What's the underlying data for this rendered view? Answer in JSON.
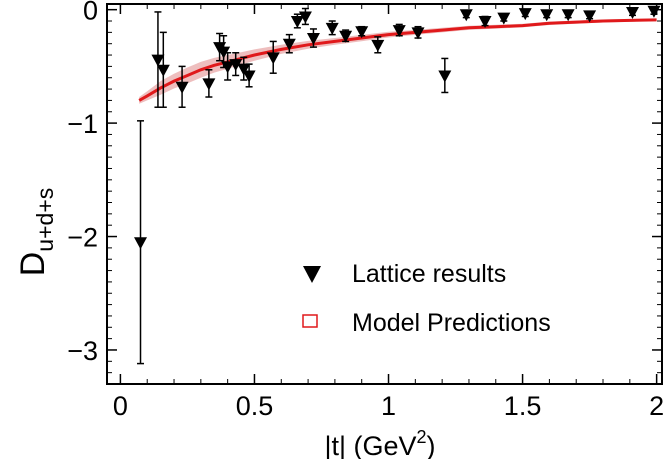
{
  "chart_data": {
    "type": "scatter",
    "title": "",
    "xlabel_main": "|t| (GeV",
    "xlabel_sup": "2",
    "xlabel_tail": ")",
    "ylabel_main": "D",
    "ylabel_sub": "u+d+s",
    "xlim": [
      -0.05,
      2.02
    ],
    "ylim": [
      -3.3,
      0.05
    ],
    "x_ticks": [
      0,
      0.5,
      1,
      1.5,
      2
    ],
    "x_tick_labels": [
      "0",
      "0.5",
      "1",
      "1.5",
      "2"
    ],
    "y_ticks": [
      0,
      -1,
      -2,
      -3
    ],
    "y_tick_labels": [
      "0",
      "−1",
      "−2",
      "−3"
    ],
    "legend": {
      "position": "bottom-right",
      "entries": [
        "Lattice results",
        "Model Predictions"
      ]
    },
    "series": [
      {
        "name": "Lattice results",
        "marker": "triangle-down",
        "color": "#000000",
        "points": [
          {
            "x": 0.075,
            "y": -2.05,
            "err": 1.07
          },
          {
            "x": 0.14,
            "y": -0.44,
            "err": 0.42
          },
          {
            "x": 0.16,
            "y": -0.53,
            "err": 0.33
          },
          {
            "x": 0.23,
            "y": -0.68,
            "err": 0.18
          },
          {
            "x": 0.33,
            "y": -0.65,
            "err": 0.12
          },
          {
            "x": 0.37,
            "y": -0.33,
            "err": 0.12
          },
          {
            "x": 0.385,
            "y": -0.37,
            "err": 0.14
          },
          {
            "x": 0.4,
            "y": -0.5,
            "err": 0.12
          },
          {
            "x": 0.43,
            "y": -0.48,
            "err": 0.1
          },
          {
            "x": 0.46,
            "y": -0.52,
            "err": 0.1
          },
          {
            "x": 0.48,
            "y": -0.58,
            "err": 0.1
          },
          {
            "x": 0.57,
            "y": -0.42,
            "err": 0.14
          },
          {
            "x": 0.63,
            "y": -0.3,
            "err": 0.08
          },
          {
            "x": 0.66,
            "y": -0.1,
            "err": 0.06
          },
          {
            "x": 0.69,
            "y": -0.06,
            "err": 0.07
          },
          {
            "x": 0.72,
            "y": -0.25,
            "err": 0.08
          },
          {
            "x": 0.79,
            "y": -0.16,
            "err": 0.06
          },
          {
            "x": 0.84,
            "y": -0.23,
            "err": 0.05
          },
          {
            "x": 0.9,
            "y": -0.19,
            "err": 0.04
          },
          {
            "x": 0.96,
            "y": -0.31,
            "err": 0.07
          },
          {
            "x": 1.04,
            "y": -0.18,
            "err": 0.05
          },
          {
            "x": 1.11,
            "y": -0.2,
            "err": 0.05
          },
          {
            "x": 1.21,
            "y": -0.58,
            "err": 0.15
          },
          {
            "x": 1.29,
            "y": -0.04,
            "err": 0.03
          },
          {
            "x": 1.36,
            "y": -0.1,
            "err": 0.04
          },
          {
            "x": 1.43,
            "y": -0.07,
            "err": 0.03
          },
          {
            "x": 1.51,
            "y": -0.03,
            "err": 0.03
          },
          {
            "x": 1.59,
            "y": -0.04,
            "err": 0.03
          },
          {
            "x": 1.67,
            "y": -0.04,
            "err": 0.03
          },
          {
            "x": 1.75,
            "y": -0.05,
            "err": 0.03
          },
          {
            "x": 1.91,
            "y": -0.02,
            "err": 0.03
          },
          {
            "x": 1.99,
            "y": -0.01,
            "err": 0.03
          }
        ]
      },
      {
        "name": "Model Predictions",
        "type": "line-with-band",
        "color": "#e0191b",
        "band_color": "#e8a8a8",
        "x": [
          0.07,
          0.1,
          0.15,
          0.2,
          0.25,
          0.3,
          0.35,
          0.4,
          0.45,
          0.5,
          0.6,
          0.7,
          0.8,
          0.9,
          1.0,
          1.1,
          1.2,
          1.3,
          1.4,
          1.5,
          1.6,
          1.7,
          1.8,
          1.9,
          2.0
        ],
        "y": [
          -0.8,
          -0.76,
          -0.69,
          -0.63,
          -0.58,
          -0.53,
          -0.49,
          -0.46,
          -0.43,
          -0.4,
          -0.35,
          -0.31,
          -0.28,
          -0.25,
          -0.22,
          -0.2,
          -0.18,
          -0.16,
          -0.15,
          -0.14,
          -0.12,
          -0.11,
          -0.1,
          -0.095,
          -0.09
        ],
        "band_halfwidth": [
          0.03,
          0.04,
          0.06,
          0.065,
          0.07,
          0.07,
          0.065,
          0.06,
          0.055,
          0.05,
          0.04,
          0.035,
          0.03,
          0.028,
          0.025,
          0.022,
          0.02,
          0.018,
          0.017,
          0.016,
          0.015,
          0.014,
          0.013,
          0.012,
          0.012
        ]
      }
    ]
  }
}
